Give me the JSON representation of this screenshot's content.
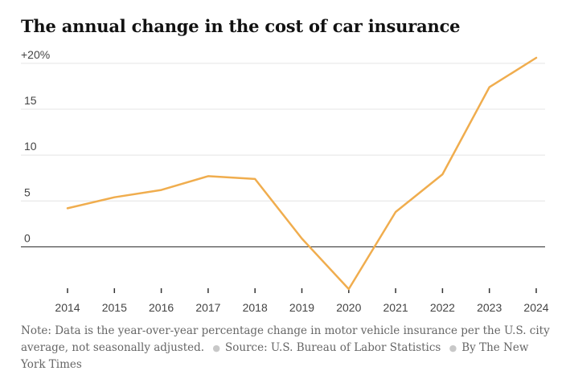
{
  "title": "The annual change in the cost of car insurance",
  "footnote": {
    "note": "Note: Data is the year-over-year percentage change in motor vehicle insurance per the U.S. city average, not seasonally adjusted.",
    "source": "Source: U.S. Bureau of Labor Statistics",
    "credit": "By The New York Times"
  },
  "colors": {
    "line": "#f0ad4e",
    "grid": "#e4e4e4",
    "zero_line": "#222222",
    "text": "#444444"
  },
  "chart_data": {
    "type": "line",
    "title": "The annual change in the cost of car insurance",
    "xlabel": "",
    "ylabel": "",
    "categories": [
      "2014",
      "2015",
      "2016",
      "2017",
      "2018",
      "2019",
      "2020",
      "2021",
      "2022",
      "2023",
      "2024"
    ],
    "series": [
      {
        "values": [
          4.2,
          5.4,
          6.2,
          7.7,
          7.4,
          0.9,
          -4.6,
          3.8,
          7.9,
          17.4,
          20.6
        ]
      }
    ],
    "yticks": [
      0,
      5,
      10,
      15,
      20
    ],
    "ytick_labels": [
      "0",
      "5",
      "10",
      "15",
      "+20%"
    ],
    "ylim": [
      -4.6,
      20.6
    ],
    "grid": true,
    "legend": "none"
  }
}
